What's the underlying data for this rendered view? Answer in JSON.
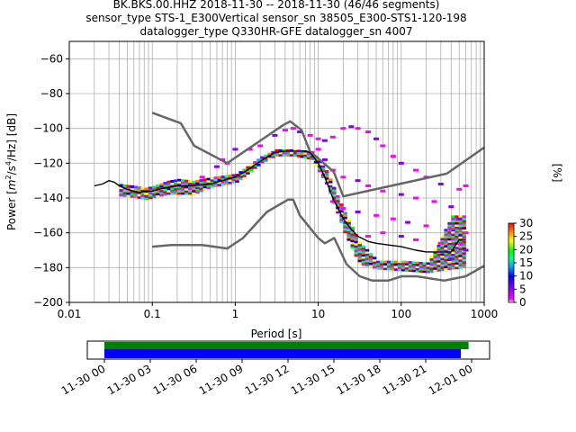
{
  "title": {
    "line1": "BK.BKS.00.HHZ   2018-11-30 -- 2018-11-30  (46/46 segments)",
    "line2": "sensor_type STS-1_E300Vertical sensor_sn 38505_E300-STS1-120-198",
    "line3": "datalogger_type Q330HR-GFE datalogger_sn 4007"
  },
  "colors": {
    "mean_line": "#000000",
    "noise_model": "#666666",
    "grid": "#b0b0b0",
    "coverage_green": "#008000",
    "coverage_blue": "#0000ff"
  },
  "chart_data": [
    {
      "type": "heatmap",
      "title": "BK.BKS.00.HHZ   2018-11-30 -- 2018-11-30  (46/46 segments)",
      "xlabel": "Period [s]",
      "ylabel": "Power [m²/s⁴/Hz] [dB]",
      "ylabel_parts": {
        "pre": "Power [",
        "m": "m",
        "e2": "2",
        "mid": "/s",
        "e4": "4",
        "post": "/Hz] [dB]"
      },
      "x_scale": "log",
      "xlim": [
        0.01,
        1000
      ],
      "ylim": [
        -200,
        -50
      ],
      "x_ticks": [
        {
          "value": 0.01,
          "label": "0.01"
        },
        {
          "value": 0.1,
          "label": "0.1"
        },
        {
          "value": 1,
          "label": "1"
        },
        {
          "value": 10,
          "label": "10"
        },
        {
          "value": 100,
          "label": "100"
        },
        {
          "value": 1000,
          "label": "1000"
        }
      ],
      "y_ticks": [
        {
          "value": -60,
          "label": "−60"
        },
        {
          "value": -80,
          "label": "−80"
        },
        {
          "value": -100,
          "label": "−100"
        },
        {
          "value": -120,
          "label": "−120"
        },
        {
          "value": -140,
          "label": "−140"
        },
        {
          "value": -160,
          "label": "−160"
        },
        {
          "value": -180,
          "label": "−180"
        },
        {
          "value": -200,
          "label": "−200"
        }
      ],
      "grid": true,
      "colorbar": {
        "label": "[%]",
        "range": [
          0,
          30
        ],
        "ticks": [
          {
            "value": 0,
            "label": "0"
          },
          {
            "value": 5,
            "label": "5"
          },
          {
            "value": 10,
            "label": "10"
          },
          {
            "value": 15,
            "label": "15"
          },
          {
            "value": 20,
            "label": "20"
          },
          {
            "value": 25,
            "label": "25"
          },
          {
            "value": 30,
            "label": "30"
          }
        ]
      },
      "mean_psd": {
        "x": [
          0.02,
          0.025,
          0.03,
          0.035,
          0.04,
          0.05,
          0.06,
          0.07,
          0.08,
          0.1,
          0.12,
          0.15,
          0.2,
          0.3,
          0.5,
          0.7,
          1,
          1.3,
          1.6,
          2,
          2.5,
          3,
          4,
          5,
          6,
          7,
          8,
          10,
          12,
          15,
          20,
          25,
          30,
          40,
          50,
          70,
          100,
          150,
          200,
          300,
          400,
          500,
          600
        ],
        "y": [
          -133,
          -132,
          -130,
          -131,
          -133,
          -135,
          -136,
          -137,
          -136,
          -136,
          -135,
          -134,
          -133,
          -133,
          -132,
          -130,
          -128,
          -125,
          -122,
          -119,
          -116,
          -114,
          -113,
          -113,
          -113,
          -113,
          -114,
          -120,
          -128,
          -140,
          -152,
          -158,
          -162,
          -165,
          -166,
          -167,
          -168,
          -170,
          -171,
          -171,
          -171,
          -164,
          -164
        ]
      },
      "noise_model_high": {
        "x": [
          0.1,
          0.22,
          0.32,
          0.8,
          3.8,
          4.6,
          6.3,
          7.9,
          15.4,
          20,
          354.8,
          1000
        ],
        "y": [
          -91,
          -97,
          -110,
          -120,
          -98,
          -96,
          -101,
          -113,
          -125,
          -139,
          -126,
          -111
        ]
      },
      "noise_model_low": {
        "x": [
          0.1,
          0.17,
          0.4,
          0.8,
          1.24,
          2.4,
          4.3,
          5,
          6,
          10,
          12,
          15.6,
          21.9,
          31.6,
          45,
          70,
          101,
          154,
          328,
          600,
          1000
        ],
        "y": [
          -168,
          -167,
          -167,
          -169,
          -163,
          -148,
          -141,
          -141,
          -150,
          -163,
          -166,
          -163,
          -178,
          -185,
          -187.5,
          -187.5,
          -185,
          -185,
          -187.5,
          -185,
          -179
        ]
      },
      "bright_band": [
        {
          "x": 0.04,
          "lo": -139,
          "hi": -132
        },
        {
          "x": 0.06,
          "lo": -140,
          "hi": -133
        },
        {
          "x": 0.08,
          "lo": -141,
          "hi": -134
        },
        {
          "x": 0.1,
          "lo": -140,
          "hi": -133
        },
        {
          "x": 0.15,
          "lo": -138,
          "hi": -130
        },
        {
          "x": 0.2,
          "lo": -138,
          "hi": -129
        },
        {
          "x": 0.3,
          "lo": -138,
          "hi": -130
        },
        {
          "x": 0.5,
          "lo": -134,
          "hi": -128
        },
        {
          "x": 1,
          "lo": -131,
          "hi": -126
        },
        {
          "x": 2,
          "lo": -120,
          "hi": -116
        },
        {
          "x": 3,
          "lo": -116,
          "hi": -112
        },
        {
          "x": 5,
          "lo": -116,
          "hi": -112
        },
        {
          "x": 8,
          "lo": -118,
          "hi": -113
        },
        {
          "x": 12,
          "lo": -132,
          "hi": -124
        },
        {
          "x": 20,
          "lo": -160,
          "hi": -148
        },
        {
          "x": 30,
          "lo": -178,
          "hi": -165
        },
        {
          "x": 50,
          "lo": -181,
          "hi": -176
        },
        {
          "x": 100,
          "lo": -182,
          "hi": -176
        },
        {
          "x": 200,
          "lo": -183,
          "hi": -177
        },
        {
          "x": 400,
          "lo": -181,
          "hi": -150
        },
        {
          "x": 600,
          "lo": -180,
          "hi": -150
        }
      ],
      "scatter_cells": [
        {
          "x": 0.6,
          "y": -122
        },
        {
          "x": 0.7,
          "y": -118
        },
        {
          "x": 0.8,
          "y": -120
        },
        {
          "x": 1,
          "y": -112
        },
        {
          "x": 1.5,
          "y": -112
        },
        {
          "x": 2,
          "y": -110
        },
        {
          "x": 3,
          "y": -104
        },
        {
          "x": 4,
          "y": -101
        },
        {
          "x": 5,
          "y": -100
        },
        {
          "x": 6,
          "y": -102
        },
        {
          "x": 8,
          "y": -104
        },
        {
          "x": 10,
          "y": -106
        },
        {
          "x": 12,
          "y": -107
        },
        {
          "x": 15,
          "y": -105
        },
        {
          "x": 20,
          "y": -100
        },
        {
          "x": 25,
          "y": -99
        },
        {
          "x": 30,
          "y": -100
        },
        {
          "x": 40,
          "y": -102
        },
        {
          "x": 50,
          "y": -106
        },
        {
          "x": 60,
          "y": -110
        },
        {
          "x": 80,
          "y": -116
        },
        {
          "x": 100,
          "y": -120
        },
        {
          "x": 150,
          "y": -124
        },
        {
          "x": 200,
          "y": -128
        },
        {
          "x": 300,
          "y": -132
        },
        {
          "x": 500,
          "y": -135
        },
        {
          "x": 10,
          "y": -112
        },
        {
          "x": 12,
          "y": -118
        },
        {
          "x": 15,
          "y": -124
        },
        {
          "x": 20,
          "y": -128
        },
        {
          "x": 30,
          "y": -130
        },
        {
          "x": 40,
          "y": -133
        },
        {
          "x": 60,
          "y": -136
        },
        {
          "x": 100,
          "y": -138
        },
        {
          "x": 150,
          "y": -140
        },
        {
          "x": 250,
          "y": -142
        },
        {
          "x": 400,
          "y": -145
        },
        {
          "x": 15,
          "y": -142
        },
        {
          "x": 20,
          "y": -146
        },
        {
          "x": 30,
          "y": -148
        },
        {
          "x": 50,
          "y": -150
        },
        {
          "x": 80,
          "y": -152
        },
        {
          "x": 120,
          "y": -154
        },
        {
          "x": 200,
          "y": -156
        },
        {
          "x": 400,
          "y": -158
        },
        {
          "x": 500,
          "y": -152
        },
        {
          "x": 600,
          "y": -160
        },
        {
          "x": 500,
          "y": -166
        },
        {
          "x": 600,
          "y": -170
        },
        {
          "x": 40,
          "y": -162
        },
        {
          "x": 60,
          "y": -160
        },
        {
          "x": 100,
          "y": -162
        },
        {
          "x": 150,
          "y": -164
        },
        {
          "x": 300,
          "y": -166
        },
        {
          "x": 400,
          "y": -175
        },
        {
          "x": 600,
          "y": -133
        },
        {
          "x": 0.4,
          "y": -128
        }
      ]
    },
    {
      "type": "bar",
      "xlabel": "",
      "ylabel": "",
      "x_ticks": [
        "11-30 00",
        "11-30 03",
        "11-30 06",
        "11-30 09",
        "11-30 12",
        "11-30 15",
        "11-30 18",
        "11-30 21",
        "12-01 00"
      ],
      "series": [
        {
          "name": "",
          "start_hour": 0,
          "end_hour": 23.8
        },
        {
          "name": "",
          "start_hour": 0,
          "end_hour": 23.3
        }
      ]
    }
  ]
}
